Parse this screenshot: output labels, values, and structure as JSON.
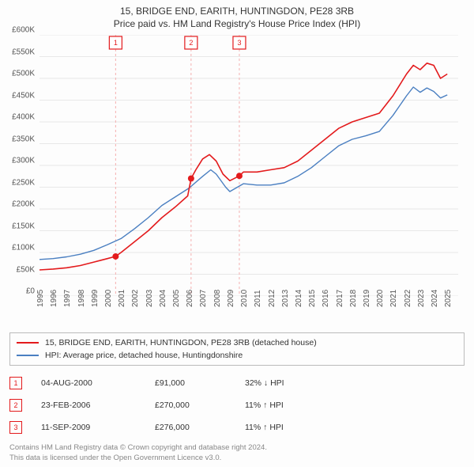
{
  "title_line1": "15, BRIDGE END, EARITH, HUNTINGDON, PE28 3RB",
  "title_line2": "Price paid vs. HM Land Registry's House Price Index (HPI)",
  "chart": {
    "type": "line",
    "background_color": "#fdfdfd",
    "grid_color": "#e8e8e8",
    "x_years": [
      1995,
      1996,
      1997,
      1998,
      1999,
      2000,
      2001,
      2002,
      2003,
      2004,
      2005,
      2006,
      2007,
      2008,
      2009,
      2010,
      2011,
      2012,
      2013,
      2014,
      2015,
      2016,
      2017,
      2018,
      2019,
      2020,
      2021,
      2022,
      2023,
      2024,
      2025
    ],
    "xlim": [
      1995,
      2025.8
    ],
    "ylim": [
      0,
      600000
    ],
    "ytick_step": 50000,
    "yticks": [
      "£0",
      "£50K",
      "£100K",
      "£150K",
      "£200K",
      "£250K",
      "£300K",
      "£350K",
      "£400K",
      "£450K",
      "£500K",
      "£550K",
      "£600K"
    ],
    "series_subject": {
      "label": "15, BRIDGE END, EARITH, HUNTINGDON, PE28 3RB (detached house)",
      "color": "#e31a1c",
      "width": 1.6,
      "points": [
        [
          1995,
          60000
        ],
        [
          1996,
          62000
        ],
        [
          1997,
          65000
        ],
        [
          1998,
          70000
        ],
        [
          1999,
          78000
        ],
        [
          2000,
          86000
        ],
        [
          2000.6,
          91000
        ],
        [
          2001,
          100000
        ],
        [
          2002,
          125000
        ],
        [
          2003,
          150000
        ],
        [
          2004,
          180000
        ],
        [
          2005,
          205000
        ],
        [
          2005.9,
          230000
        ],
        [
          2006.15,
          270000
        ],
        [
          2006.5,
          290000
        ],
        [
          2007,
          315000
        ],
        [
          2007.5,
          325000
        ],
        [
          2008,
          310000
        ],
        [
          2008.5,
          280000
        ],
        [
          2009,
          265000
        ],
        [
          2009.7,
          276000
        ],
        [
          2010,
          285000
        ],
        [
          2011,
          285000
        ],
        [
          2012,
          290000
        ],
        [
          2013,
          295000
        ],
        [
          2014,
          310000
        ],
        [
          2015,
          335000
        ],
        [
          2016,
          360000
        ],
        [
          2017,
          385000
        ],
        [
          2018,
          400000
        ],
        [
          2019,
          410000
        ],
        [
          2020,
          420000
        ],
        [
          2021,
          460000
        ],
        [
          2022,
          510000
        ],
        [
          2022.5,
          530000
        ],
        [
          2023,
          520000
        ],
        [
          2023.5,
          535000
        ],
        [
          2024,
          530000
        ],
        [
          2024.5,
          500000
        ],
        [
          2025,
          510000
        ]
      ]
    },
    "series_hpi": {
      "label": "HPI: Average price, detached house, Huntingdonshire",
      "color": "#4a7fc1",
      "width": 1.4,
      "points": [
        [
          1995,
          84000
        ],
        [
          1996,
          86000
        ],
        [
          1997,
          90000
        ],
        [
          1998,
          96000
        ],
        [
          1999,
          105000
        ],
        [
          2000,
          118000
        ],
        [
          2001,
          132000
        ],
        [
          2002,
          155000
        ],
        [
          2003,
          180000
        ],
        [
          2004,
          208000
        ],
        [
          2005,
          228000
        ],
        [
          2006,
          248000
        ],
        [
          2007,
          275000
        ],
        [
          2007.6,
          290000
        ],
        [
          2008,
          280000
        ],
        [
          2008.7,
          250000
        ],
        [
          2009,
          240000
        ],
        [
          2010,
          258000
        ],
        [
          2011,
          255000
        ],
        [
          2012,
          255000
        ],
        [
          2013,
          260000
        ],
        [
          2014,
          275000
        ],
        [
          2015,
          295000
        ],
        [
          2016,
          320000
        ],
        [
          2017,
          345000
        ],
        [
          2018,
          360000
        ],
        [
          2019,
          368000
        ],
        [
          2020,
          378000
        ],
        [
          2021,
          415000
        ],
        [
          2022,
          460000
        ],
        [
          2022.5,
          480000
        ],
        [
          2023,
          468000
        ],
        [
          2023.5,
          478000
        ],
        [
          2024,
          470000
        ],
        [
          2024.5,
          455000
        ],
        [
          2025,
          462000
        ]
      ]
    },
    "sale_markers": [
      {
        "n": "1",
        "year": 2000.6,
        "price": 91000
      },
      {
        "n": "2",
        "year": 2006.15,
        "price": 270000
      },
      {
        "n": "3",
        "year": 2009.7,
        "price": 276000
      }
    ],
    "marker_line_color": "#f4b0b0"
  },
  "legend": {
    "row1_color": "#e31a1c",
    "row2_color": "#4a7fc1"
  },
  "events": [
    {
      "n": "1",
      "date": "04-AUG-2000",
      "price": "£91,000",
      "delta": "32% ↓ HPI"
    },
    {
      "n": "2",
      "date": "23-FEB-2006",
      "price": "£270,000",
      "delta": "11% ↑ HPI"
    },
    {
      "n": "3",
      "date": "11-SEP-2009",
      "price": "£276,000",
      "delta": "11% ↑ HPI"
    }
  ],
  "attribution_line1": "Contains HM Land Registry data © Crown copyright and database right 2024.",
  "attribution_line2": "This data is licensed under the Open Government Licence v3.0."
}
